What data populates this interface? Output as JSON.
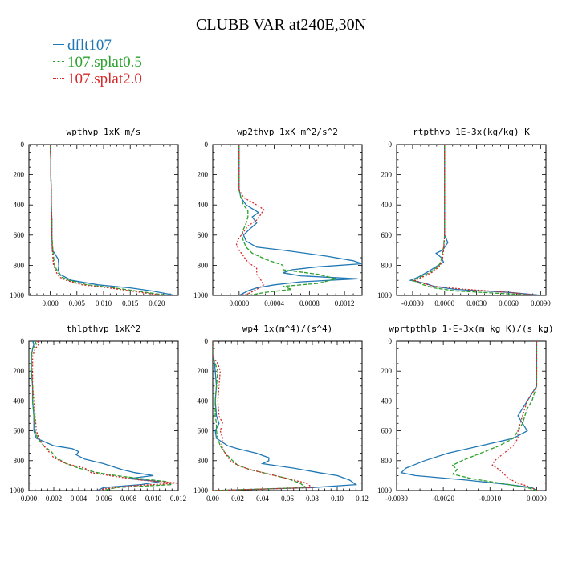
{
  "title": "CLUBB VAR at240E,30N",
  "legend": [
    {
      "label": "dflt107",
      "color": "#1f77b4",
      "dash": "solid"
    },
    {
      "label": "107.splat0.5",
      "color": "#2ca02c",
      "dash": "dashed"
    },
    {
      "label": "107.splat2.0",
      "color": "#d62728",
      "dash": "dotted"
    }
  ],
  "chart_data": [
    {
      "type": "line",
      "title": "wpthvp   1xK m/s",
      "xlim": [
        -0.004,
        0.024
      ],
      "xticks": [
        0.0,
        0.005,
        0.01,
        0.015,
        0.02
      ],
      "xtick_labels": [
        "0.000",
        "0.005",
        "0.010",
        "0.015",
        "0.020"
      ],
      "ylim": [
        1000,
        0
      ],
      "yticks": [
        0,
        200,
        400,
        600,
        800,
        1000
      ],
      "series": [
        {
          "y": [
            0,
            100,
            200,
            300,
            400,
            500,
            600,
            700,
            720,
            760,
            800,
            830,
            860,
            900,
            930,
            950,
            970,
            990,
            1000
          ],
          "x": [
            0.0,
            0.0001,
            0.0001,
            0.0002,
            0.0002,
            0.0003,
            0.0003,
            0.0004,
            0.0008,
            0.0015,
            0.0016,
            0.0015,
            0.0018,
            0.004,
            0.009,
            0.015,
            0.019,
            0.022,
            0.0235
          ]
        },
        {
          "y": [
            0,
            100,
            200,
            300,
            400,
            500,
            600,
            700,
            740,
            800,
            850,
            880,
            900,
            930,
            950,
            970,
            990,
            1000
          ],
          "x": [
            0.0,
            0.0001,
            0.0001,
            0.0002,
            0.0002,
            0.0003,
            0.0003,
            0.0005,
            0.0006,
            0.0008,
            0.0015,
            0.0022,
            0.0035,
            0.007,
            0.012,
            0.016,
            0.02,
            0.0225
          ]
        },
        {
          "y": [
            0,
            100,
            200,
            300,
            400,
            500,
            600,
            700,
            750,
            800,
            850,
            880,
            900,
            930,
            950,
            970,
            990,
            1000
          ],
          "x": [
            0.0,
            0.0001,
            0.0001,
            0.0002,
            0.0002,
            0.0003,
            0.0003,
            0.0004,
            0.0005,
            0.0006,
            0.0012,
            0.0018,
            0.003,
            0.006,
            0.011,
            0.015,
            0.019,
            0.0215
          ]
        }
      ]
    },
    {
      "type": "line",
      "title": "wp2thvp   1xK m^2/s^2",
      "xlim": [
        -0.0003,
        0.0014
      ],
      "xticks": [
        0.0,
        0.0004,
        0.0008,
        0.0012
      ],
      "xtick_labels": [
        "0.0000",
        "0.0004",
        "0.0008",
        "0.0012"
      ],
      "ylim": [
        1000,
        0
      ],
      "yticks": [
        0,
        200,
        400,
        600,
        800,
        1000
      ],
      "series": [
        {
          "y": [
            0,
            100,
            200,
            300,
            350,
            400,
            450,
            480,
            520,
            560,
            600,
            640,
            680,
            700,
            740,
            770,
            790,
            810,
            830,
            850,
            870,
            890,
            910,
            930,
            950,
            970,
            1000
          ],
          "x": [
            0.0,
            0.0,
            0.0,
            0.0,
            2e-05,
            8e-05,
            0.00022,
            0.00015,
            0.0002,
            0.00012,
            5e-05,
            8e-05,
            0.0002,
            0.0005,
            0.001,
            0.0013,
            0.0014,
            0.0009,
            0.0006,
            0.0005,
            0.0007,
            0.00135,
            0.0007,
            0.0004,
            0.0002,
            0.0001,
            0.0
          ]
        },
        {
          "y": [
            0,
            100,
            200,
            300,
            350,
            400,
            440,
            480,
            520,
            560,
            600,
            640,
            680,
            720,
            760,
            800,
            830,
            860,
            890,
            920,
            940,
            960,
            980,
            1000
          ],
          "x": [
            0.0,
            0.0,
            0.0,
            0.0,
            2e-05,
            5e-05,
            0.0001,
            0.0001,
            8e-05,
            5e-05,
            3e-05,
            5e-05,
            8e-05,
            0.00015,
            0.0003,
            0.0005,
            0.0005,
            0.0009,
            0.0011,
            0.0009,
            0.0005,
            0.0006,
            0.0003,
            0.0001
          ]
        },
        {
          "y": [
            0,
            100,
            200,
            300,
            350,
            400,
            430,
            460,
            500,
            540,
            580,
            620,
            660,
            700,
            740,
            780,
            820,
            860,
            900,
            930,
            960,
            990,
            1000
          ],
          "x": [
            0.0,
            0.0,
            0.0,
            0.0,
            5e-05,
            0.0002,
            0.00028,
            0.00025,
            0.0002,
            0.0001,
            5e-05,
            0.0,
            -3e-05,
            0.0,
            5e-05,
            0.0001,
            0.0002,
            0.0002,
            0.00025,
            0.00028,
            0.0002,
            0.0001,
            0.0
          ]
        }
      ]
    },
    {
      "type": "line",
      "title": "rtpthvp   1E-3x(kg/kg) K",
      "xlim": [
        -0.0045,
        0.0095
      ],
      "xticks": [
        -0.003,
        0.0,
        0.003,
        0.006,
        0.009
      ],
      "xtick_labels": [
        "-0.0030",
        "0.0000",
        "0.0030",
        "0.0060",
        "0.0090"
      ],
      "ylim": [
        1000,
        0
      ],
      "yticks": [
        0,
        200,
        400,
        600,
        800,
        1000
      ],
      "series": [
        {
          "y": [
            0,
            100,
            200,
            300,
            400,
            500,
            600,
            650,
            700,
            720,
            750,
            780,
            800,
            840,
            880,
            900,
            920,
            940,
            960,
            980,
            1000
          ],
          "x": [
            0.0,
            0.0,
            0.0,
            0.0,
            0.0,
            0.0,
            0.0,
            0.0003,
            -0.0002,
            -0.0008,
            -0.0003,
            -0.0001,
            -0.0006,
            -0.0015,
            -0.0025,
            -0.0032,
            -0.0018,
            -0.001,
            0.001,
            0.006,
            0.0092
          ]
        },
        {
          "y": [
            0,
            100,
            200,
            300,
            400,
            500,
            600,
            680,
            720,
            760,
            800,
            840,
            870,
            900,
            930,
            950,
            970,
            990,
            1000
          ],
          "x": [
            0.0,
            0.0,
            0.0,
            0.0,
            0.0,
            0.0,
            0.0,
            -0.0001,
            -0.0002,
            -0.0003,
            -0.0005,
            -0.0012,
            -0.002,
            -0.003,
            -0.002,
            -0.001,
            0.001,
            0.006,
            0.009
          ]
        },
        {
          "y": [
            0,
            100,
            200,
            300,
            400,
            500,
            600,
            700,
            760,
            800,
            840,
            870,
            900,
            920,
            940,
            960,
            980,
            1000
          ],
          "x": [
            0.0,
            0.0,
            0.0,
            0.0,
            0.0,
            0.0,
            0.0,
            -0.0001,
            -0.0002,
            -0.0004,
            -0.001,
            -0.0018,
            -0.0028,
            -0.002,
            -0.001,
            0.002,
            0.006,
            0.0088
          ]
        }
      ]
    },
    {
      "type": "line",
      "title": "thlpthvp   1xK^2",
      "xlim": [
        0.0,
        0.012
      ],
      "xticks": [
        0.0,
        0.002,
        0.004,
        0.006,
        0.008,
        0.01,
        0.012
      ],
      "xtick_labels": [
        "0.000",
        "0.002",
        "0.004",
        "0.006",
        "0.008",
        "0.010",
        "0.012"
      ],
      "ylim": [
        1000,
        0
      ],
      "yticks": [
        0,
        200,
        400,
        600,
        800,
        1000
      ],
      "series": [
        {
          "y": [
            0,
            20,
            50,
            100,
            200,
            300,
            400,
            500,
            600,
            650,
            700,
            720,
            740,
            760,
            790,
            820,
            860,
            880,
            900,
            920,
            940,
            960,
            980,
            1000
          ],
          "x": [
            0.0003,
            0.0004,
            0.0003,
            0.0002,
            0.0002,
            0.0003,
            0.0003,
            0.0004,
            0.0004,
            0.0006,
            0.002,
            0.0035,
            0.004,
            0.0038,
            0.0045,
            0.006,
            0.0075,
            0.0085,
            0.01,
            0.008,
            0.0105,
            0.009,
            0.006,
            0.0055
          ]
        },
        {
          "y": [
            0,
            20,
            50,
            100,
            200,
            300,
            400,
            500,
            600,
            650,
            700,
            740,
            780,
            820,
            850,
            880,
            900,
            920,
            940,
            960,
            980,
            1000
          ],
          "x": [
            0.0005,
            0.0006,
            0.0003,
            0.0002,
            0.0002,
            0.0003,
            0.0003,
            0.0004,
            0.0005,
            0.0007,
            0.0012,
            0.0018,
            0.0022,
            0.003,
            0.004,
            0.0055,
            0.007,
            0.009,
            0.011,
            0.0115,
            0.007,
            0.006
          ]
        },
        {
          "y": [
            0,
            20,
            50,
            100,
            200,
            300,
            400,
            500,
            600,
            650,
            700,
            740,
            780,
            820,
            850,
            880,
            900,
            930,
            950,
            970,
            990,
            1000
          ],
          "x": [
            0.0007,
            0.0008,
            0.0005,
            0.0003,
            0.0003,
            0.0003,
            0.0004,
            0.0005,
            0.0006,
            0.0008,
            0.0012,
            0.0016,
            0.002,
            0.003,
            0.0045,
            0.005,
            0.0065,
            0.009,
            0.012,
            0.008,
            0.006,
            0.0055
          ]
        }
      ]
    },
    {
      "type": "line",
      "title": "wp4   1x(m^4)/(s^4)",
      "xlim": [
        0.0,
        0.12
      ],
      "xticks": [
        0.0,
        0.02,
        0.04,
        0.06,
        0.08,
        0.1,
        0.12
      ],
      "xtick_labels": [
        "0.00",
        "0.02",
        "0.04",
        "0.06",
        "0.08",
        "0.10",
        "0.12"
      ],
      "ylim": [
        1000,
        0
      ],
      "yticks": [
        0,
        200,
        400,
        600,
        800,
        1000
      ],
      "series": [
        {
          "y": [
            0,
            50,
            100,
            150,
            200,
            300,
            400,
            500,
            550,
            600,
            650,
            700,
            720,
            750,
            780,
            800,
            820,
            850,
            880,
            900,
            930,
            960,
            980,
            1000
          ],
          "x": [
            0.0,
            0.0,
            0.0,
            0.0015,
            0.002,
            0.003,
            0.002,
            0.003,
            0.005,
            0.002,
            0.003,
            0.012,
            0.02,
            0.035,
            0.045,
            0.045,
            0.04,
            0.065,
            0.085,
            0.1,
            0.11,
            0.115,
            0.08,
            0.0
          ]
        },
        {
          "y": [
            0,
            100,
            150,
            200,
            300,
            400,
            500,
            550,
            600,
            650,
            700,
            750,
            800,
            830,
            860,
            890,
            920,
            950,
            980,
            1000
          ],
          "x": [
            0.0,
            0.0,
            0.002,
            0.004,
            0.003,
            0.002,
            0.002,
            0.003,
            0.003,
            0.004,
            0.006,
            0.01,
            0.016,
            0.02,
            0.03,
            0.045,
            0.06,
            0.07,
            0.075,
            0.0
          ]
        },
        {
          "y": [
            0,
            100,
            150,
            200,
            300,
            400,
            500,
            550,
            600,
            650,
            700,
            750,
            800,
            830,
            860,
            890,
            920,
            950,
            980,
            1000
          ],
          "x": [
            0.0,
            0.0,
            0.004,
            0.006,
            0.005,
            0.004,
            0.005,
            0.008,
            0.006,
            0.008,
            0.007,
            0.01,
            0.014,
            0.02,
            0.03,
            0.045,
            0.06,
            0.075,
            0.08,
            0.0
          ]
        }
      ]
    },
    {
      "type": "line",
      "title": "wprtpthlp   1-E-3x(m kg K)/(s kg)",
      "xlim": [
        -0.003,
        0.0002
      ],
      "xticks": [
        -0.003,
        -0.002,
        -0.001,
        0.0
      ],
      "xtick_labels": [
        "-0.0030",
        "-0.0020",
        "-0.0010",
        "0.0000"
      ],
      "ylim": [
        1000,
        0
      ],
      "yticks": [
        0,
        200,
        400,
        600,
        800,
        1000
      ],
      "series": [
        {
          "y": [
            0,
            100,
            200,
            300,
            350,
            400,
            450,
            500,
            550,
            600,
            650,
            700,
            750,
            800,
            850,
            880,
            900,
            930,
            960,
            980,
            1000
          ],
          "x": [
            0.0,
            0.0,
            0.0,
            0.0,
            -0.0001,
            -0.0002,
            -0.0003,
            -0.0004,
            -0.0003,
            -0.0002,
            -0.0005,
            -0.0012,
            -0.0019,
            -0.0024,
            -0.0028,
            -0.0029,
            -0.0026,
            -0.0015,
            -0.0006,
            -0.0001,
            0.0
          ]
        },
        {
          "y": [
            0,
            100,
            200,
            300,
            350,
            400,
            450,
            500,
            550,
            600,
            650,
            700,
            750,
            800,
            830,
            860,
            890,
            920,
            950,
            980,
            1000
          ],
          "x": [
            0.0,
            0.0,
            0.0,
            0.0,
            -5e-05,
            -0.0001,
            -0.0002,
            -0.00025,
            -0.0003,
            -0.0004,
            -0.0005,
            -0.0008,
            -0.0012,
            -0.0016,
            -0.0018,
            -0.0017,
            -0.0018,
            -0.0014,
            -0.0008,
            -0.0002,
            0.0
          ]
        },
        {
          "y": [
            0,
            100,
            200,
            300,
            350,
            400,
            450,
            500,
            550,
            600,
            650,
            700,
            750,
            800,
            830,
            860,
            890,
            920,
            950,
            980,
            1000
          ],
          "x": [
            0.0,
            0.0,
            0.0,
            0.0,
            -0.0001,
            -0.0002,
            -0.00025,
            -0.0003,
            -0.00035,
            -0.0004,
            -0.0004,
            -0.0005,
            -0.0007,
            -0.0009,
            -0.00095,
            -0.0008,
            -0.0007,
            -0.0006,
            -0.0004,
            -0.0001,
            0.0
          ]
        }
      ]
    }
  ]
}
